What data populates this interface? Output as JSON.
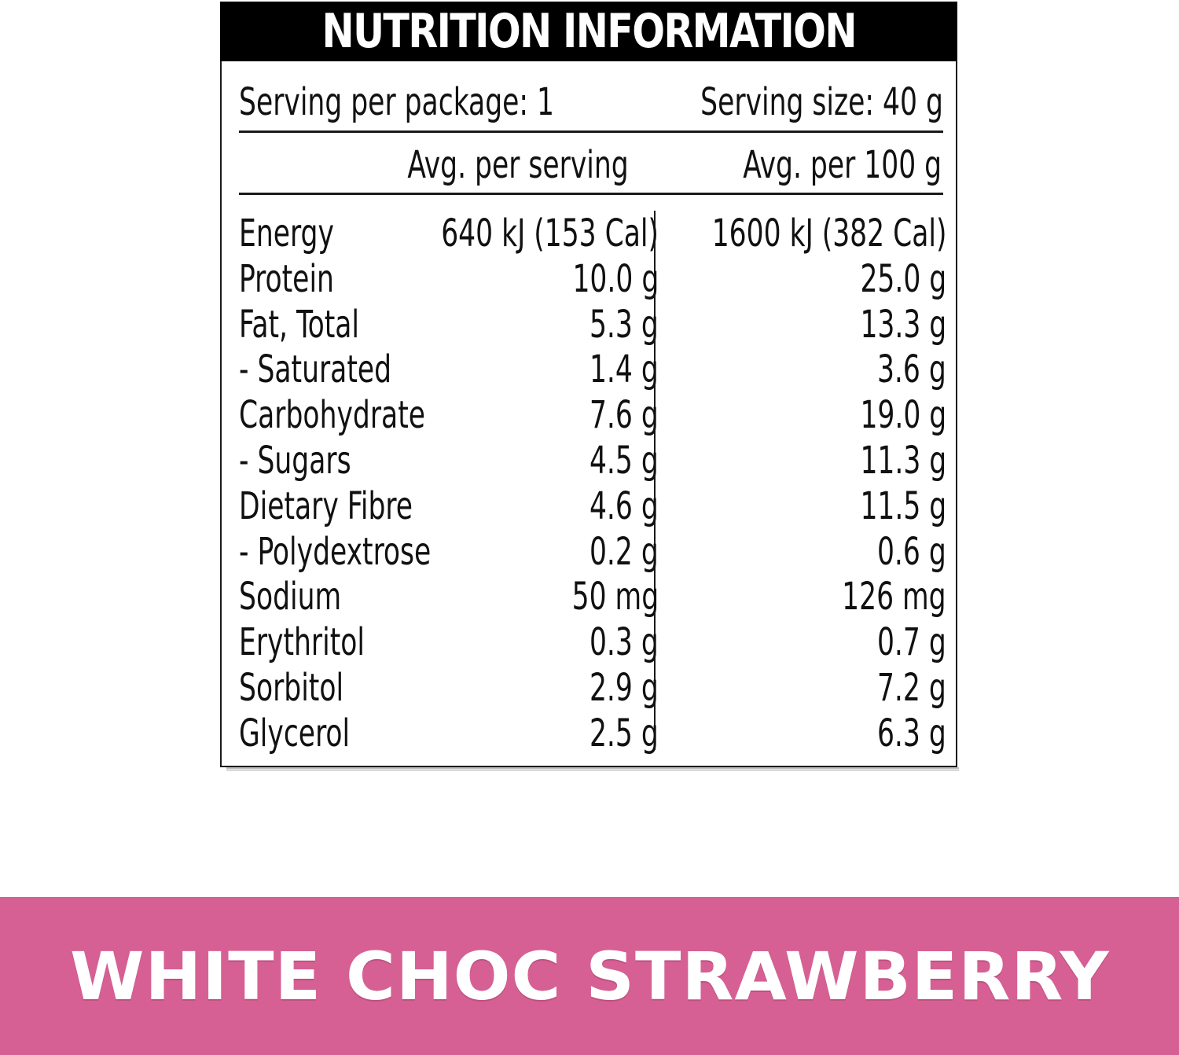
{
  "panel": {
    "title": "NUTRITION INFORMATION",
    "serving_per_package": "Serving per package: 1",
    "serving_size": "Serving size: 40 g",
    "column_headers": [
      "Avg. per serving",
      "Avg. per 100 g"
    ],
    "nutrients": [
      {
        "name": "Energy",
        "per_serving": "640 kJ (153 Cal)",
        "per_100g": "1600 kJ (382 Cal)"
      },
      {
        "name": "Protein",
        "per_serving": "10.0 g",
        "per_100g": "25.0 g"
      },
      {
        "name": "Fat, Total",
        "per_serving": "5.3 g",
        "per_100g": "13.3 g"
      },
      {
        "name": "- Saturated",
        "per_serving": "1.4 g",
        "per_100g": "3.6 g"
      },
      {
        "name": "Carbohydrate",
        "per_serving": "7.6 g",
        "per_100g": "19.0 g"
      },
      {
        "name": "- Sugars",
        "per_serving": "4.5 g",
        "per_100g": "11.3 g"
      },
      {
        "name": "Dietary Fibre",
        "per_serving": "4.6 g",
        "per_100g": "11.5 g"
      },
      {
        "name": "- Polydextrose",
        "per_serving": "0.2 g",
        "per_100g": "0.6 g"
      },
      {
        "name": "Sodium",
        "per_serving": "50 mg",
        "per_100g": "126 mg"
      },
      {
        "name": "Erythritol",
        "per_serving": "0.3 g",
        "per_100g": "0.7 g"
      },
      {
        "name": "Sorbitol",
        "per_serving": "2.9 g",
        "per_100g": "7.2 g"
      },
      {
        "name": "Glycerol",
        "per_serving": "2.5 g",
        "per_100g": "6.3 g"
      }
    ]
  },
  "flavor_band": {
    "label": "WHITE CHOC STRAWBERRY",
    "color": "#d66093"
  }
}
